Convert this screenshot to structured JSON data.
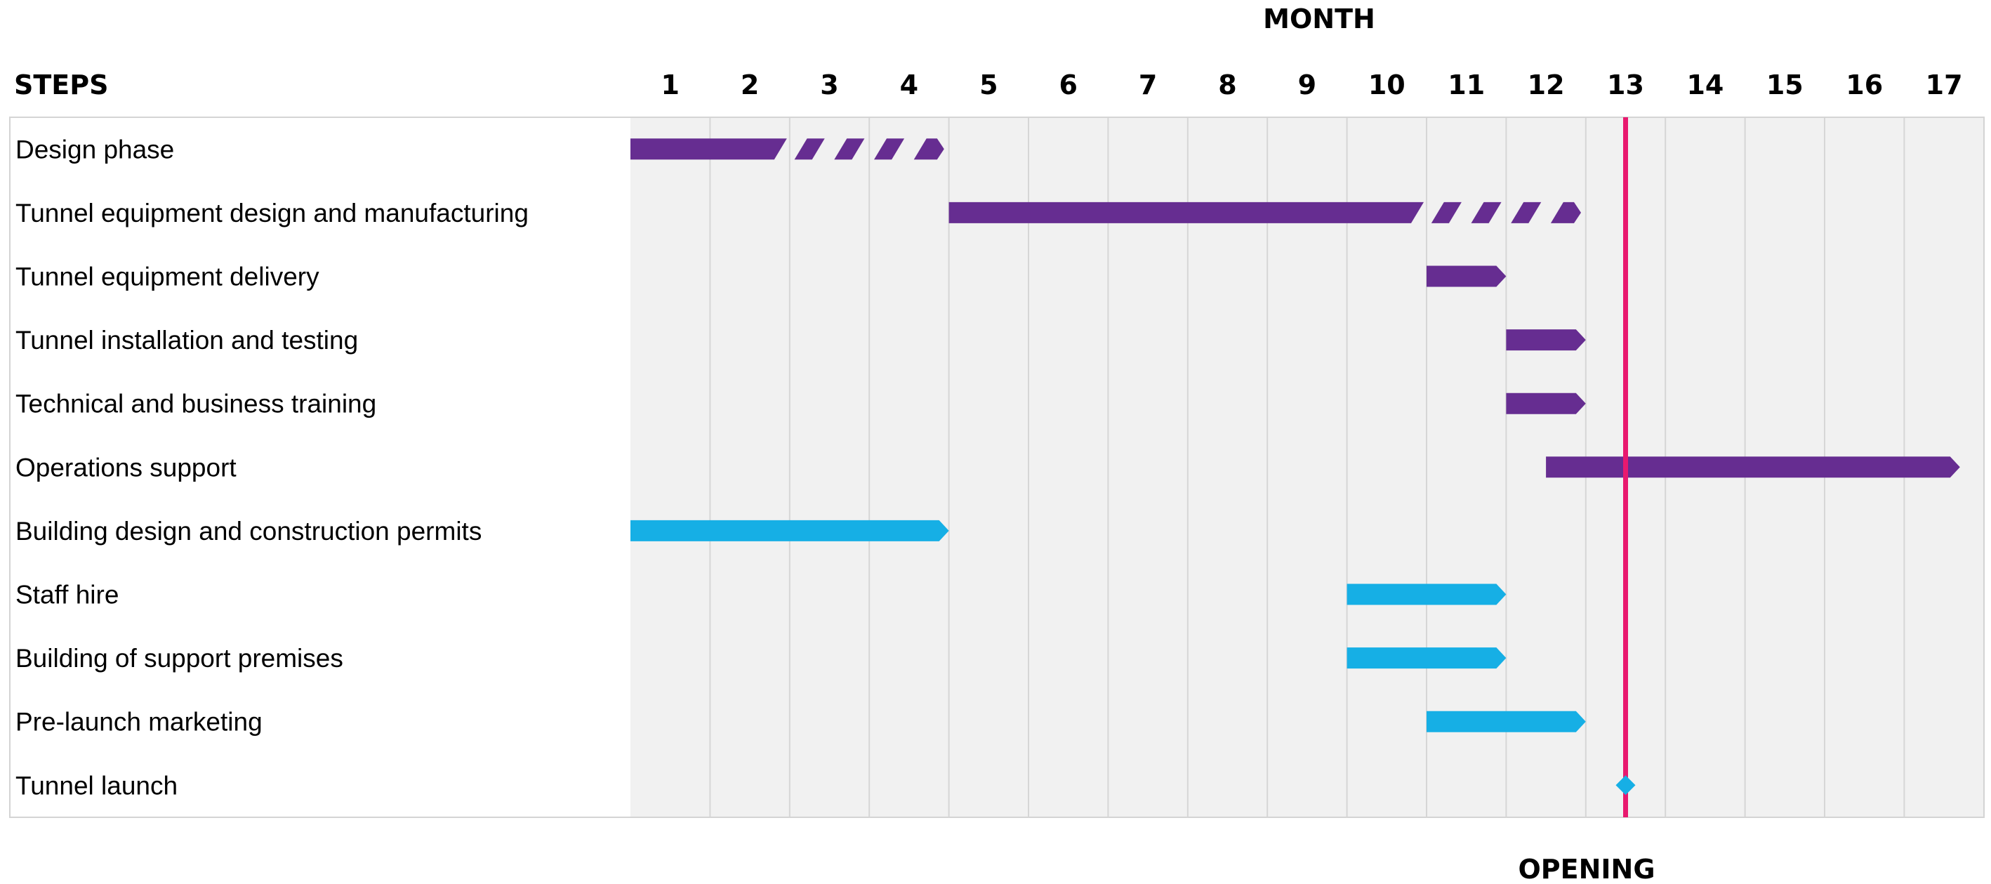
{
  "chart_data": {
    "type": "gantt",
    "x_axis_title": "MONTH",
    "row_header": "STEPS",
    "months": [
      "1",
      "2",
      "3",
      "4",
      "5",
      "6",
      "7",
      "8",
      "9",
      "10",
      "11",
      "12",
      "13",
      "14",
      "15",
      "16",
      "17"
    ],
    "milestone_line": {
      "label": "OPENING",
      "month": 12.5,
      "color": "#E8196F"
    },
    "colors": {
      "purple": "#662D91",
      "blue": "#16AFE5"
    },
    "tasks": [
      {
        "name": "Design phase",
        "color": "purple",
        "segments": [
          {
            "start": 0,
            "end": 2,
            "style": "solid"
          },
          {
            "start": 2,
            "end": 4,
            "style": "hatched"
          }
        ]
      },
      {
        "name": "Tunnel equipment design and manufacturing",
        "color": "purple",
        "segments": [
          {
            "start": 4,
            "end": 10,
            "style": "solid"
          },
          {
            "start": 10,
            "end": 12,
            "style": "hatched"
          }
        ]
      },
      {
        "name": "Tunnel equipment delivery",
        "color": "purple",
        "segments": [
          {
            "start": 10,
            "end": 11,
            "style": "solid"
          }
        ]
      },
      {
        "name": "Tunnel installation and testing",
        "color": "purple",
        "segments": [
          {
            "start": 11,
            "end": 12,
            "style": "solid"
          }
        ]
      },
      {
        "name": "Technical and business training",
        "color": "purple",
        "segments": [
          {
            "start": 11,
            "end": 12,
            "style": "solid"
          }
        ]
      },
      {
        "name": "Operations support",
        "color": "purple",
        "segments": [
          {
            "start": 11.5,
            "end": 16.7,
            "style": "solid"
          }
        ]
      },
      {
        "name": "Building design and construction permits",
        "color": "blue",
        "segments": [
          {
            "start": 0,
            "end": 4,
            "style": "solid"
          }
        ]
      },
      {
        "name": "Staff hire",
        "color": "blue",
        "segments": [
          {
            "start": 9,
            "end": 11,
            "style": "solid"
          }
        ]
      },
      {
        "name": "Building of support premises",
        "color": "blue",
        "segments": [
          {
            "start": 9,
            "end": 11,
            "style": "solid"
          }
        ]
      },
      {
        "name": "Pre-launch marketing",
        "color": "blue",
        "segments": [
          {
            "start": 10,
            "end": 12,
            "style": "solid"
          }
        ]
      },
      {
        "name": "Tunnel launch",
        "color": "blue",
        "milestone": 12
      }
    ]
  }
}
